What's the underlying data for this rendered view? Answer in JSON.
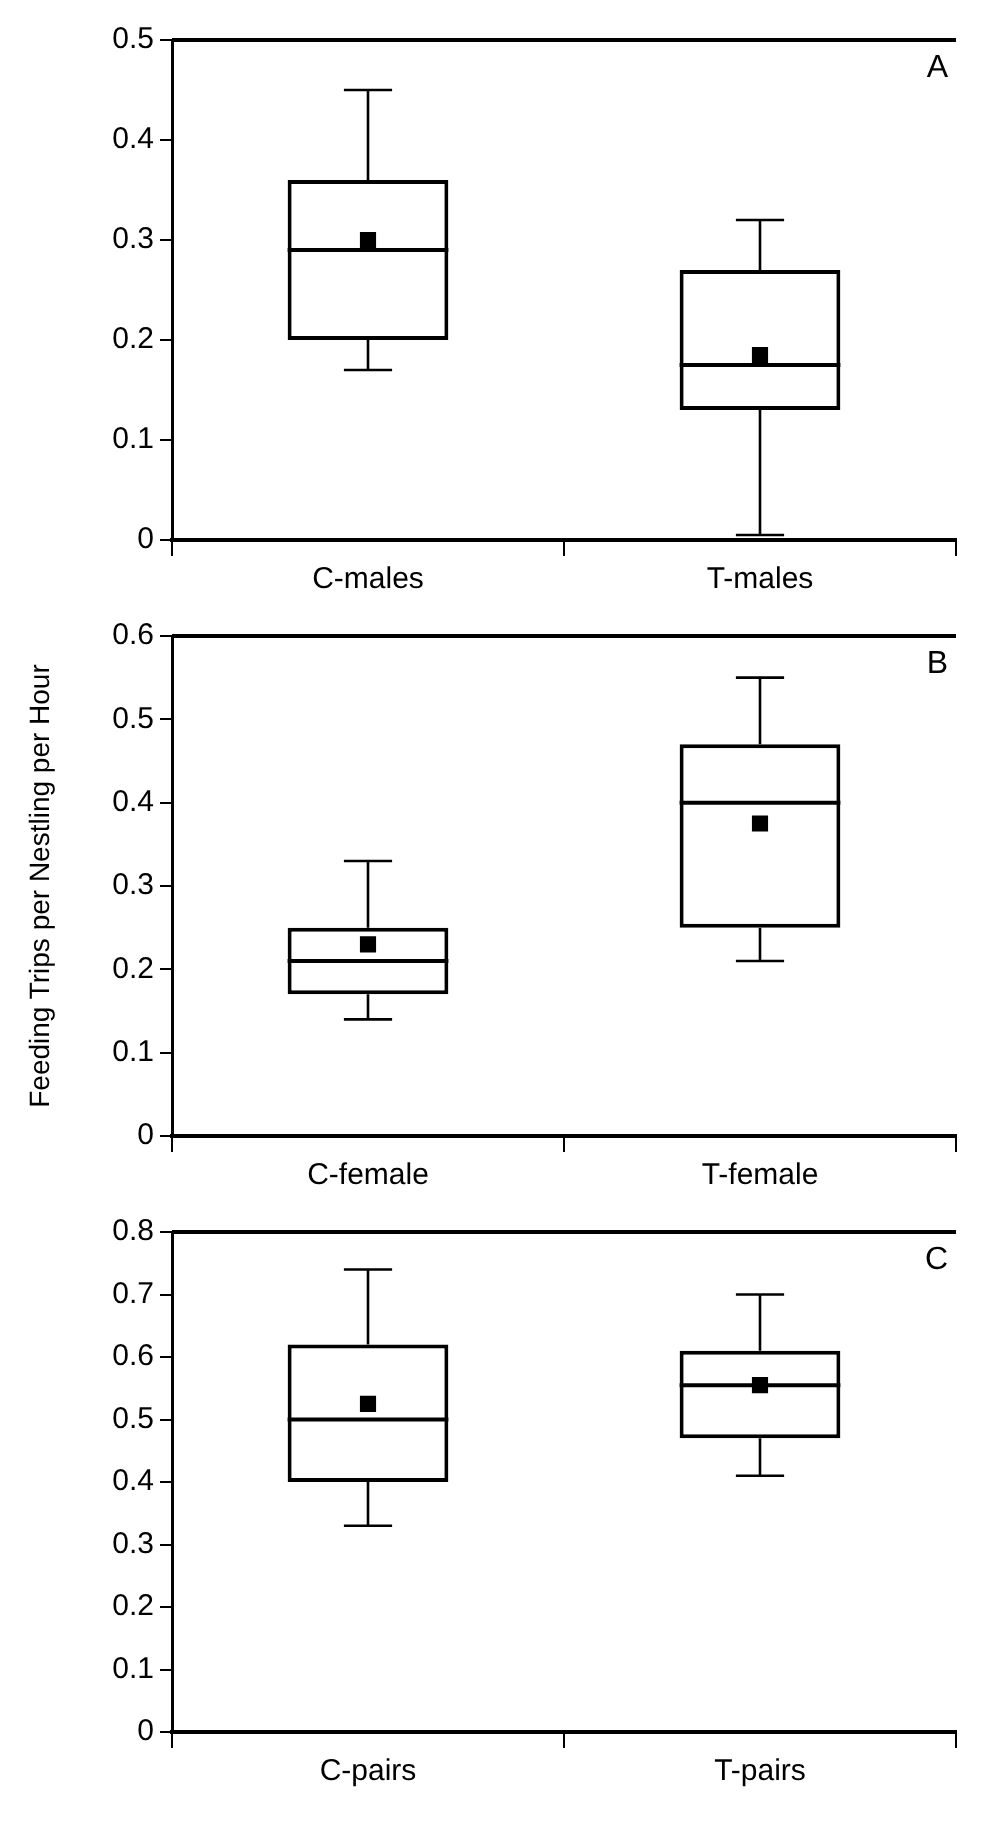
{
  "chart_data": [
    {
      "type": "box",
      "categories": [
        "C-males",
        "T-males"
      ],
      "annotations": [
        "A"
      ],
      "ylim": [
        0,
        0.5
      ],
      "yticks": [
        0,
        0.1,
        0.2,
        0.3,
        0.4,
        0.5
      ],
      "boxes": [
        {
          "low": 0.17,
          "q1": 0.2,
          "median": 0.29,
          "q3": 0.36,
          "high": 0.45,
          "mean": 0.3
        },
        {
          "low": 0.005,
          "q1": 0.13,
          "median": 0.175,
          "q3": 0.27,
          "high": 0.32,
          "mean": 0.185
        }
      ]
    },
    {
      "type": "box",
      "categories": [
        "C-female",
        "T-female"
      ],
      "annotations": [
        "B"
      ],
      "ylabel": "Feeding Trips per Nestling per Hour",
      "ylim": [
        0,
        0.6
      ],
      "yticks": [
        0,
        0.1,
        0.2,
        0.3,
        0.4,
        0.5,
        0.6
      ],
      "boxes": [
        {
          "low": 0.14,
          "q1": 0.17,
          "median": 0.21,
          "q3": 0.25,
          "high": 0.33,
          "mean": 0.23
        },
        {
          "low": 0.21,
          "q1": 0.25,
          "median": 0.4,
          "q3": 0.47,
          "high": 0.55,
          "mean": 0.375
        }
      ]
    },
    {
      "type": "box",
      "categories": [
        "C-pairs",
        "T-pairs"
      ],
      "annotations": [
        "C"
      ],
      "ylim": [
        0,
        0.8
      ],
      "yticks": [
        0,
        0.1,
        0.2,
        0.3,
        0.4,
        0.5,
        0.6,
        0.7,
        0.8
      ],
      "boxes": [
        {
          "low": 0.33,
          "q1": 0.4,
          "median": 0.5,
          "q3": 0.62,
          "high": 0.74,
          "mean": 0.525
        },
        {
          "low": 0.41,
          "q1": 0.47,
          "median": 0.555,
          "q3": 0.61,
          "high": 0.7,
          "mean": 0.555
        }
      ]
    }
  ]
}
